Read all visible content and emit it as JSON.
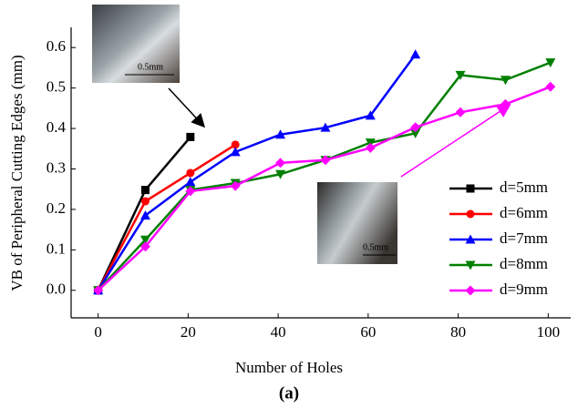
{
  "chart_data": {
    "type": "line",
    "xlabel": "Number of Holes",
    "ylabel": "VB of Peripheral Cutting Edges (mm)",
    "caption": "(a)",
    "xlim": [
      -6,
      105
    ],
    "ylim": [
      -0.068,
      0.65
    ],
    "xticks": [
      0,
      20,
      40,
      60,
      80,
      100
    ],
    "yticks": [
      {
        "value": 0,
        "label": "0.0"
      },
      0.1,
      0.2,
      0.3,
      0.4,
      0.5,
      0.6
    ],
    "legend_loc": "center right",
    "series": [
      {
        "name": "d=5mm",
        "color": "#000000",
        "marker": "square",
        "x": [
          0,
          10.5,
          20.5
        ],
        "values": [
          0,
          0.248,
          0.379
        ]
      },
      {
        "name": "d=6mm",
        "color": "#ff0000",
        "marker": "circle",
        "x": [
          0,
          10.5,
          20.5,
          30.5
        ],
        "values": [
          0,
          0.22,
          0.29,
          0.36
        ]
      },
      {
        "name": "d=7mm",
        "color": "#0000ff",
        "marker": "triangle-up",
        "x": [
          0,
          10.5,
          20.5,
          30.5,
          40.5,
          50.5,
          60.5,
          70.5
        ],
        "values": [
          0,
          0.185,
          0.268,
          0.342,
          0.385,
          0.402,
          0.432,
          0.583
        ]
      },
      {
        "name": "d=8mm",
        "color": "#008000",
        "marker": "triangle-down",
        "x": [
          0,
          10.5,
          20.5,
          30.5,
          40.5,
          50.5,
          60.5,
          70.5,
          80.5,
          90.5,
          100.5
        ],
        "values": [
          0,
          0.125,
          0.248,
          0.265,
          0.287,
          0.322,
          0.365,
          0.388,
          0.532,
          0.52,
          0.563
        ]
      },
      {
        "name": "d=9mm",
        "color": "#ff00ff",
        "marker": "diamond",
        "x": [
          0,
          10.5,
          20.5,
          30.5,
          40.5,
          50.5,
          60.5,
          70.5,
          80.5,
          90.5,
          100.5
        ],
        "values": [
          0,
          0.108,
          0.245,
          0.258,
          0.315,
          0.322,
          0.352,
          0.403,
          0.44,
          0.46,
          0.503
        ]
      }
    ],
    "insets": [
      {
        "scale_label": "0.5mm"
      },
      {
        "scale_label": "0.5mm"
      }
    ]
  }
}
